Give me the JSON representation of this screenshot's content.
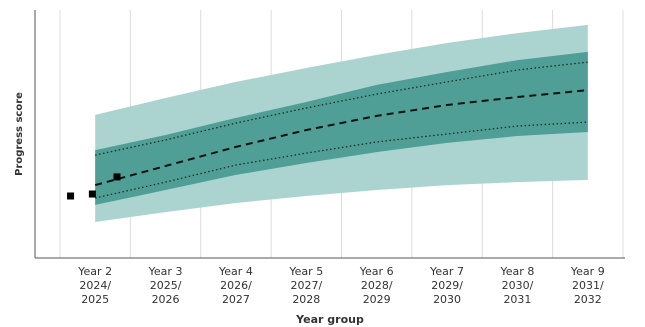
{
  "chart_data": {
    "type": "band",
    "y_label": "Progress score",
    "x_label": "Year group",
    "categories": [
      [
        "Year 2",
        "2024/",
        "2025"
      ],
      [
        "Year 3",
        "2025/",
        "2026"
      ],
      [
        "Year 4",
        "2026/",
        "2027"
      ],
      [
        "Year 5",
        "2027/",
        "2028"
      ],
      [
        "Year 6",
        "2028/",
        "2029"
      ],
      [
        "Year 7",
        "2029/",
        "2030"
      ],
      [
        "Year 8",
        "2030/",
        "2031"
      ],
      [
        "Year 9",
        "2031/",
        "2032"
      ]
    ],
    "ylim": [
      0,
      100
    ],
    "bands": [
      {
        "color": "#abd4d1",
        "upper": [
          57.7,
          64.5,
          71.0,
          76.6,
          81.9,
          86.7,
          90.7,
          94.0
        ],
        "lower": [
          14.5,
          18.5,
          22.2,
          25.0,
          27.4,
          29.4,
          30.6,
          31.5
        ]
      },
      {
        "color": "#4f9f97",
        "upper": [
          43.5,
          49.6,
          56.5,
          62.9,
          69.8,
          75.0,
          79.8,
          83.1
        ],
        "lower": [
          21.4,
          27.4,
          33.5,
          38.3,
          42.7,
          46.4,
          49.2,
          50.8
        ]
      }
    ],
    "lines": [
      {
        "style": "dotted",
        "color": "#1b2b2a",
        "values": [
          41.5,
          47.6,
          54.4,
          60.5,
          66.1,
          71.0,
          75.8,
          79.0
        ]
      },
      {
        "style": "dotted",
        "color": "#1b2b2a",
        "values": [
          24.2,
          30.6,
          37.5,
          42.3,
          46.8,
          50.0,
          53.2,
          54.8
        ]
      },
      {
        "style": "dashed",
        "color": "#111111",
        "values": [
          29.4,
          37.1,
          44.8,
          51.6,
          57.3,
          61.7,
          64.9,
          67.7
        ]
      }
    ],
    "points": {
      "color": "#000000",
      "x": [
        -0.35,
        -0.04,
        0.31
      ],
      "values": [
        25.0,
        25.8,
        32.7
      ]
    }
  }
}
